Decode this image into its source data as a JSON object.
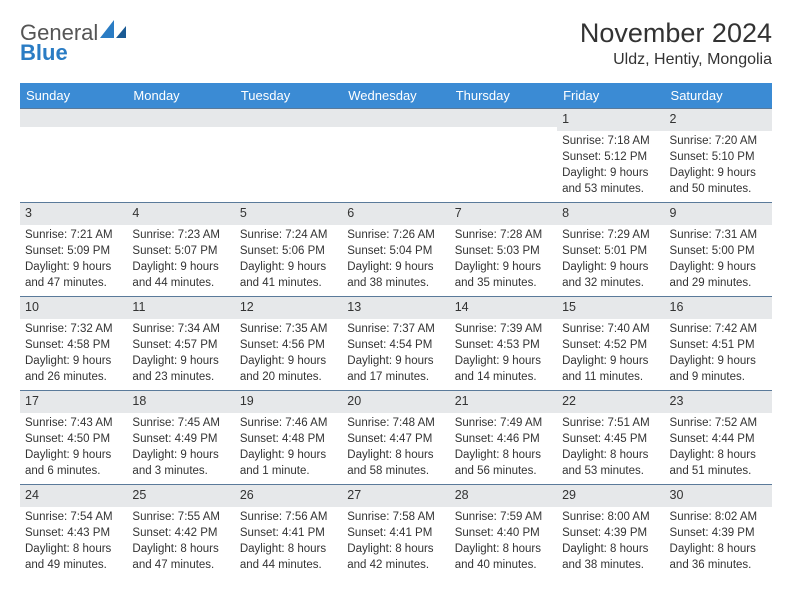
{
  "logo": {
    "word1": "General",
    "word2": "Blue"
  },
  "title": "November 2024",
  "location": "Uldz, Hentiy, Mongolia",
  "colors": {
    "header_bg": "#3b8bd4",
    "daynum_bg": "#e6e8ea",
    "text": "#333333",
    "logo_blue": "#2a7cc4"
  },
  "day_headers": [
    "Sunday",
    "Monday",
    "Tuesday",
    "Wednesday",
    "Thursday",
    "Friday",
    "Saturday"
  ],
  "weeks": [
    [
      {
        "n": "",
        "sunrise": "",
        "sunset": "",
        "daylight": ""
      },
      {
        "n": "",
        "sunrise": "",
        "sunset": "",
        "daylight": ""
      },
      {
        "n": "",
        "sunrise": "",
        "sunset": "",
        "daylight": ""
      },
      {
        "n": "",
        "sunrise": "",
        "sunset": "",
        "daylight": ""
      },
      {
        "n": "",
        "sunrise": "",
        "sunset": "",
        "daylight": ""
      },
      {
        "n": "1",
        "sunrise": "Sunrise: 7:18 AM",
        "sunset": "Sunset: 5:12 PM",
        "daylight": "Daylight: 9 hours and 53 minutes."
      },
      {
        "n": "2",
        "sunrise": "Sunrise: 7:20 AM",
        "sunset": "Sunset: 5:10 PM",
        "daylight": "Daylight: 9 hours and 50 minutes."
      }
    ],
    [
      {
        "n": "3",
        "sunrise": "Sunrise: 7:21 AM",
        "sunset": "Sunset: 5:09 PM",
        "daylight": "Daylight: 9 hours and 47 minutes."
      },
      {
        "n": "4",
        "sunrise": "Sunrise: 7:23 AM",
        "sunset": "Sunset: 5:07 PM",
        "daylight": "Daylight: 9 hours and 44 minutes."
      },
      {
        "n": "5",
        "sunrise": "Sunrise: 7:24 AM",
        "sunset": "Sunset: 5:06 PM",
        "daylight": "Daylight: 9 hours and 41 minutes."
      },
      {
        "n": "6",
        "sunrise": "Sunrise: 7:26 AM",
        "sunset": "Sunset: 5:04 PM",
        "daylight": "Daylight: 9 hours and 38 minutes."
      },
      {
        "n": "7",
        "sunrise": "Sunrise: 7:28 AM",
        "sunset": "Sunset: 5:03 PM",
        "daylight": "Daylight: 9 hours and 35 minutes."
      },
      {
        "n": "8",
        "sunrise": "Sunrise: 7:29 AM",
        "sunset": "Sunset: 5:01 PM",
        "daylight": "Daylight: 9 hours and 32 minutes."
      },
      {
        "n": "9",
        "sunrise": "Sunrise: 7:31 AM",
        "sunset": "Sunset: 5:00 PM",
        "daylight": "Daylight: 9 hours and 29 minutes."
      }
    ],
    [
      {
        "n": "10",
        "sunrise": "Sunrise: 7:32 AM",
        "sunset": "Sunset: 4:58 PM",
        "daylight": "Daylight: 9 hours and 26 minutes."
      },
      {
        "n": "11",
        "sunrise": "Sunrise: 7:34 AM",
        "sunset": "Sunset: 4:57 PM",
        "daylight": "Daylight: 9 hours and 23 minutes."
      },
      {
        "n": "12",
        "sunrise": "Sunrise: 7:35 AM",
        "sunset": "Sunset: 4:56 PM",
        "daylight": "Daylight: 9 hours and 20 minutes."
      },
      {
        "n": "13",
        "sunrise": "Sunrise: 7:37 AM",
        "sunset": "Sunset: 4:54 PM",
        "daylight": "Daylight: 9 hours and 17 minutes."
      },
      {
        "n": "14",
        "sunrise": "Sunrise: 7:39 AM",
        "sunset": "Sunset: 4:53 PM",
        "daylight": "Daylight: 9 hours and 14 minutes."
      },
      {
        "n": "15",
        "sunrise": "Sunrise: 7:40 AM",
        "sunset": "Sunset: 4:52 PM",
        "daylight": "Daylight: 9 hours and 11 minutes."
      },
      {
        "n": "16",
        "sunrise": "Sunrise: 7:42 AM",
        "sunset": "Sunset: 4:51 PM",
        "daylight": "Daylight: 9 hours and 9 minutes."
      }
    ],
    [
      {
        "n": "17",
        "sunrise": "Sunrise: 7:43 AM",
        "sunset": "Sunset: 4:50 PM",
        "daylight": "Daylight: 9 hours and 6 minutes."
      },
      {
        "n": "18",
        "sunrise": "Sunrise: 7:45 AM",
        "sunset": "Sunset: 4:49 PM",
        "daylight": "Daylight: 9 hours and 3 minutes."
      },
      {
        "n": "19",
        "sunrise": "Sunrise: 7:46 AM",
        "sunset": "Sunset: 4:48 PM",
        "daylight": "Daylight: 9 hours and 1 minute."
      },
      {
        "n": "20",
        "sunrise": "Sunrise: 7:48 AM",
        "sunset": "Sunset: 4:47 PM",
        "daylight": "Daylight: 8 hours and 58 minutes."
      },
      {
        "n": "21",
        "sunrise": "Sunrise: 7:49 AM",
        "sunset": "Sunset: 4:46 PM",
        "daylight": "Daylight: 8 hours and 56 minutes."
      },
      {
        "n": "22",
        "sunrise": "Sunrise: 7:51 AM",
        "sunset": "Sunset: 4:45 PM",
        "daylight": "Daylight: 8 hours and 53 minutes."
      },
      {
        "n": "23",
        "sunrise": "Sunrise: 7:52 AM",
        "sunset": "Sunset: 4:44 PM",
        "daylight": "Daylight: 8 hours and 51 minutes."
      }
    ],
    [
      {
        "n": "24",
        "sunrise": "Sunrise: 7:54 AM",
        "sunset": "Sunset: 4:43 PM",
        "daylight": "Daylight: 8 hours and 49 minutes."
      },
      {
        "n": "25",
        "sunrise": "Sunrise: 7:55 AM",
        "sunset": "Sunset: 4:42 PM",
        "daylight": "Daylight: 8 hours and 47 minutes."
      },
      {
        "n": "26",
        "sunrise": "Sunrise: 7:56 AM",
        "sunset": "Sunset: 4:41 PM",
        "daylight": "Daylight: 8 hours and 44 minutes."
      },
      {
        "n": "27",
        "sunrise": "Sunrise: 7:58 AM",
        "sunset": "Sunset: 4:41 PM",
        "daylight": "Daylight: 8 hours and 42 minutes."
      },
      {
        "n": "28",
        "sunrise": "Sunrise: 7:59 AM",
        "sunset": "Sunset: 4:40 PM",
        "daylight": "Daylight: 8 hours and 40 minutes."
      },
      {
        "n": "29",
        "sunrise": "Sunrise: 8:00 AM",
        "sunset": "Sunset: 4:39 PM",
        "daylight": "Daylight: 8 hours and 38 minutes."
      },
      {
        "n": "30",
        "sunrise": "Sunrise: 8:02 AM",
        "sunset": "Sunset: 4:39 PM",
        "daylight": "Daylight: 8 hours and 36 minutes."
      }
    ]
  ]
}
